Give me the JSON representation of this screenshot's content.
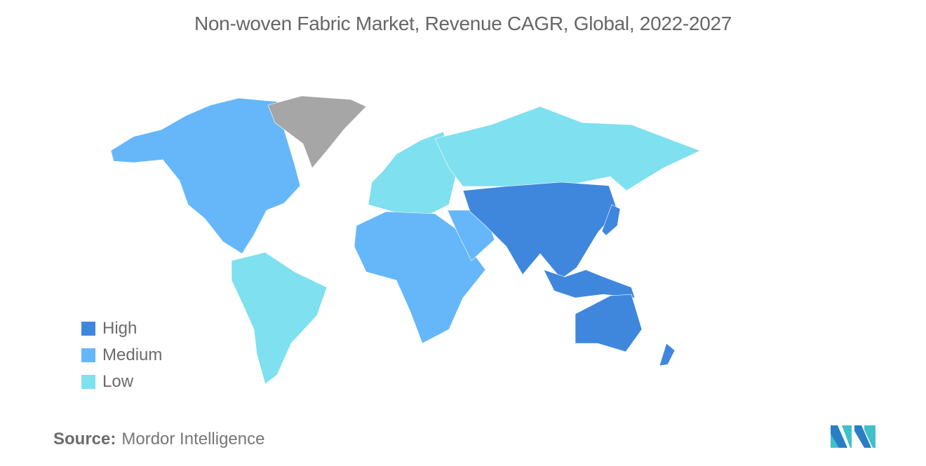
{
  "title": "Non-woven Fabric Market, Revenue CAGR, Global, 2022-2027",
  "legend": [
    {
      "label": "High",
      "color": "#3f87dd"
    },
    {
      "label": "Medium",
      "color": "#66b7fa"
    },
    {
      "label": "Low",
      "color": "#7fe0ef"
    }
  ],
  "no_data_color": "#a6a6a6",
  "regions": {
    "north_america": "Medium",
    "south_america": "Low",
    "europe": "Low",
    "russia": "Low",
    "africa": "Medium",
    "middle_east": "Medium",
    "asia": "High",
    "japan": "High",
    "southeast_asia": "High",
    "australia": "High",
    "new_zealand": "High",
    "greenland": "none"
  },
  "source": {
    "label": "Source:",
    "value": "Mordor Intelligence"
  }
}
